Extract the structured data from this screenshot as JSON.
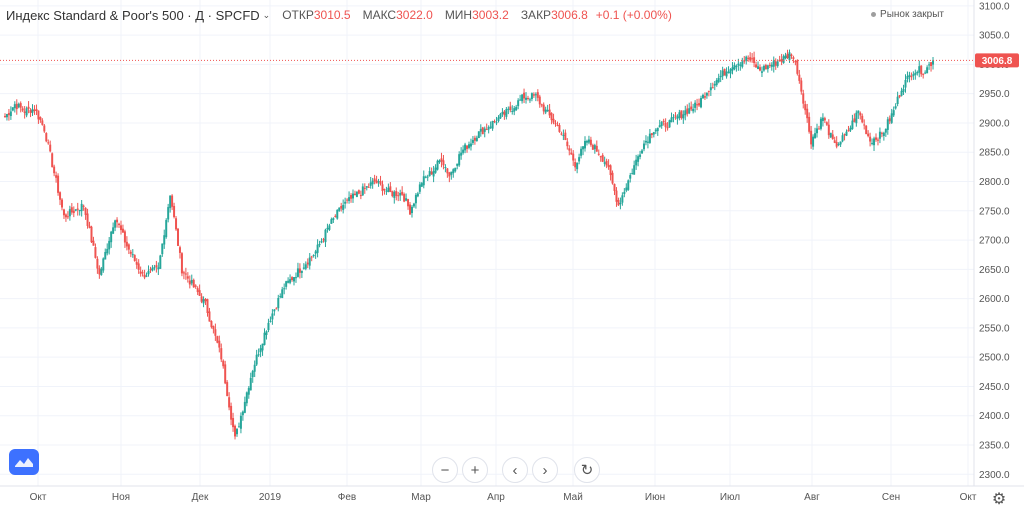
{
  "header": {
    "symbol": "Индекс Standard & Poor's 500 · Д · SPCFD",
    "open_label": "ОТКР",
    "open_value": "3010.5",
    "high_label": "МАКС",
    "high_value": "3022.0",
    "low_label": "МИН",
    "low_value": "3003.2",
    "close_label": "ЗАКР",
    "close_value": "3006.8",
    "change": "+0.1 (+0.00%)",
    "market_status": "Рынок закрыт"
  },
  "colors": {
    "up": "#26a69a",
    "down": "#ef5350",
    "grid": "#f0f3fa",
    "axis_text": "#555555",
    "price_line": "#ef5350"
  },
  "icons": {
    "zoom_out": "minus-icon",
    "zoom_in": "plus-icon",
    "scroll_left": "chevron-left-icon",
    "scroll_right": "chevron-right-icon",
    "reset": "reset-icon",
    "settings": "gear-icon",
    "logo": "tradingview-logo-icon"
  },
  "chart_data": {
    "type": "candlestick",
    "y_range": [
      2280,
      3110
    ],
    "y_ticks": [
      2300,
      2350,
      2400,
      2450,
      2500,
      2550,
      2600,
      2650,
      2700,
      2750,
      2800,
      2850,
      2900,
      2950,
      3000,
      3050,
      3100
    ],
    "x_labels": [
      "Окт",
      "Ноя",
      "Дек",
      "2019",
      "Фев",
      "Мар",
      "Апр",
      "Май",
      "Июн",
      "Июл",
      "Авг",
      "Сен",
      "Окт"
    ],
    "last_price": 3006.8,
    "last_price_label": "3006.8",
    "grid": true,
    "path_anchors": [
      [
        0,
        2910
      ],
      [
        5,
        2932
      ],
      [
        10,
        2920
      ],
      [
        15,
        2925
      ],
      [
        20,
        2890
      ],
      [
        30,
        2740
      ],
      [
        40,
        2760
      ],
      [
        48,
        2640
      ],
      [
        56,
        2740
      ],
      [
        62,
        2690
      ],
      [
        70,
        2640
      ],
      [
        78,
        2650
      ],
      [
        84,
        2780
      ],
      [
        90,
        2650
      ],
      [
        96,
        2620
      ],
      [
        102,
        2590
      ],
      [
        110,
        2500
      ],
      [
        117,
        2360
      ],
      [
        120,
        2400
      ],
      [
        126,
        2480
      ],
      [
        134,
        2560
      ],
      [
        142,
        2620
      ],
      [
        150,
        2650
      ],
      [
        158,
        2680
      ],
      [
        165,
        2725
      ],
      [
        172,
        2760
      ],
      [
        180,
        2780
      ],
      [
        188,
        2800
      ],
      [
        196,
        2780
      ],
      [
        202,
        2780
      ],
      [
        206,
        2750
      ],
      [
        212,
        2800
      ],
      [
        218,
        2820
      ],
      [
        222,
        2840
      ],
      [
        226,
        2810
      ],
      [
        232,
        2850
      ],
      [
        240,
        2880
      ],
      [
        248,
        2900
      ],
      [
        256,
        2920
      ],
      [
        264,
        2945
      ],
      [
        270,
        2945
      ],
      [
        275,
        2920
      ],
      [
        282,
        2890
      ],
      [
        290,
        2830
      ],
      [
        296,
        2870
      ],
      [
        302,
        2850
      ],
      [
        306,
        2830
      ],
      [
        312,
        2760
      ],
      [
        318,
        2810
      ],
      [
        324,
        2860
      ],
      [
        330,
        2890
      ],
      [
        338,
        2900
      ],
      [
        346,
        2920
      ],
      [
        352,
        2930
      ],
      [
        358,
        2960
      ],
      [
        364,
        2980
      ],
      [
        370,
        3000
      ],
      [
        378,
        3010
      ],
      [
        384,
        2990
      ],
      [
        390,
        3000
      ],
      [
        396,
        3010
      ],
      [
        400,
        3020
      ],
      [
        403,
        2990
      ],
      [
        406,
        2940
      ],
      [
        410,
        2870
      ],
      [
        416,
        2910
      ],
      [
        422,
        2860
      ],
      [
        428,
        2880
      ],
      [
        434,
        2920
      ],
      [
        440,
        2870
      ],
      [
        446,
        2880
      ],
      [
        452,
        2920
      ],
      [
        456,
        2960
      ],
      [
        462,
        2990
      ],
      [
        468,
        2990
      ],
      [
        472,
        3006.8
      ]
    ]
  }
}
